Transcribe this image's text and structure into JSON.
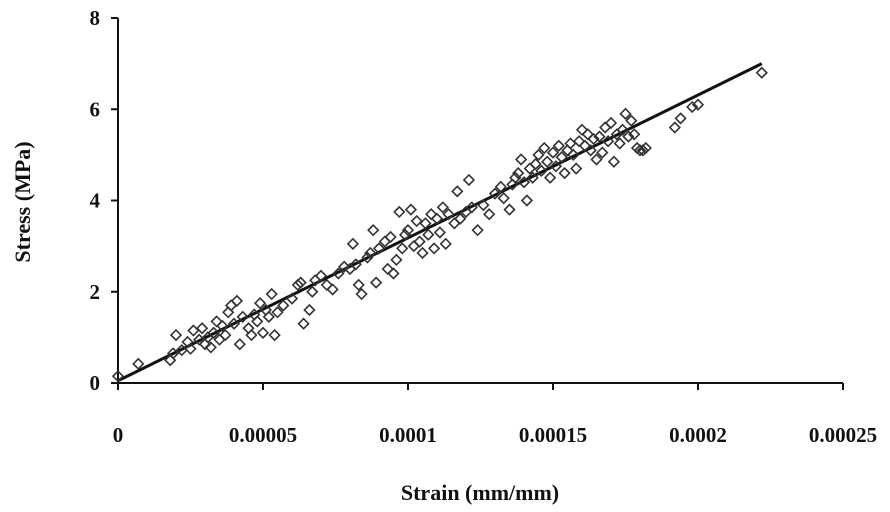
{
  "chart_data": {
    "type": "scatter",
    "title": "",
    "xlabel": "Strain (mm/mm)",
    "ylabel": "Stress (MPa)",
    "xlim": [
      0,
      0.00025
    ],
    "ylim": [
      0,
      8
    ],
    "x_ticks": [
      0,
      5e-05,
      0.0001,
      0.00015,
      0.0002,
      0.00025
    ],
    "x_tick_labels": [
      "0",
      "0.00005",
      "0.0001",
      "0.00015",
      "0.0002",
      "0.00025"
    ],
    "y_ticks": [
      0,
      2,
      4,
      6,
      8
    ],
    "y_tick_labels": [
      "0",
      "2",
      "4",
      "6",
      "8"
    ],
    "grid": false,
    "legend": "none",
    "series": [
      {
        "marker": "diamond-open",
        "points": [
          [
            0,
            0.15
          ],
          [
            7e-06,
            0.42
          ],
          [
            1.8e-05,
            0.5
          ],
          [
            1.9e-05,
            0.65
          ],
          [
            2e-05,
            1.05
          ],
          [
            2.2e-05,
            0.72
          ],
          [
            2.4e-05,
            0.9
          ],
          [
            2.5e-05,
            0.75
          ],
          [
            2.6e-05,
            1.15
          ],
          [
            2.8e-05,
            0.95
          ],
          [
            2.9e-05,
            1.2
          ],
          [
            3e-05,
            0.85
          ],
          [
            3.1e-05,
            1.0
          ],
          [
            3.2e-05,
            0.78
          ],
          [
            3.3e-05,
            1.1
          ],
          [
            3.4e-05,
            1.35
          ],
          [
            3.5e-05,
            0.95
          ],
          [
            3.6e-05,
            1.25
          ],
          [
            3.7e-05,
            1.05
          ],
          [
            3.8e-05,
            1.55
          ],
          [
            3.9e-05,
            1.7
          ],
          [
            4e-05,
            1.3
          ],
          [
            4.1e-05,
            1.8
          ],
          [
            4.2e-05,
            0.85
          ],
          [
            4.3e-05,
            1.45
          ],
          [
            4.5e-05,
            1.2
          ],
          [
            4.6e-05,
            1.05
          ],
          [
            4.7e-05,
            1.5
          ],
          [
            4.8e-05,
            1.35
          ],
          [
            4.9e-05,
            1.75
          ],
          [
            5e-05,
            1.1
          ],
          [
            5.1e-05,
            1.6
          ],
          [
            5.2e-05,
            1.45
          ],
          [
            5.3e-05,
            1.95
          ],
          [
            5.4e-05,
            1.05
          ],
          [
            5.5e-05,
            1.55
          ],
          [
            5.7e-05,
            1.7
          ],
          [
            6e-05,
            1.85
          ],
          [
            6.2e-05,
            2.15
          ],
          [
            6.3e-05,
            2.2
          ],
          [
            6.4e-05,
            1.3
          ],
          [
            6.6e-05,
            1.6
          ],
          [
            6.7e-05,
            2.0
          ],
          [
            6.8e-05,
            2.25
          ],
          [
            7e-05,
            2.35
          ],
          [
            7.2e-05,
            2.15
          ],
          [
            7.4e-05,
            2.05
          ],
          [
            7.6e-05,
            2.4
          ],
          [
            7.8e-05,
            2.55
          ],
          [
            8e-05,
            2.5
          ],
          [
            8.1e-05,
            3.05
          ],
          [
            8.2e-05,
            2.6
          ],
          [
            8.3e-05,
            2.15
          ],
          [
            8.4e-05,
            1.95
          ],
          [
            8.6e-05,
            2.75
          ],
          [
            8.7e-05,
            2.85
          ],
          [
            8.8e-05,
            3.35
          ],
          [
            8.9e-05,
            2.2
          ],
          [
            9e-05,
            2.95
          ],
          [
            9.2e-05,
            3.1
          ],
          [
            9.3e-05,
            2.5
          ],
          [
            9.4e-05,
            3.2
          ],
          [
            9.5e-05,
            2.4
          ],
          [
            9.6e-05,
            2.7
          ],
          [
            9.7e-05,
            3.75
          ],
          [
            9.8e-05,
            2.95
          ],
          [
            9.9e-05,
            3.25
          ],
          [
            0.0001,
            3.35
          ],
          [
            0.000101,
            3.8
          ],
          [
            0.000102,
            3.0
          ],
          [
            0.000103,
            3.55
          ],
          [
            0.000104,
            3.1
          ],
          [
            0.000105,
            2.85
          ],
          [
            0.000106,
            3.5
          ],
          [
            0.000107,
            3.25
          ],
          [
            0.000108,
            3.7
          ],
          [
            0.000109,
            2.95
          ],
          [
            0.00011,
            3.6
          ],
          [
            0.000111,
            3.3
          ],
          [
            0.000112,
            3.85
          ],
          [
            0.000113,
            3.05
          ],
          [
            0.000114,
            3.7
          ],
          [
            0.000116,
            3.5
          ],
          [
            0.000117,
            4.2
          ],
          [
            0.000118,
            3.6
          ],
          [
            0.00012,
            3.75
          ],
          [
            0.000121,
            4.45
          ],
          [
            0.000122,
            3.85
          ],
          [
            0.000124,
            3.35
          ],
          [
            0.000126,
            3.9
          ],
          [
            0.000128,
            3.7
          ],
          [
            0.00013,
            4.15
          ],
          [
            0.000132,
            4.3
          ],
          [
            0.000133,
            4.05
          ],
          [
            0.000135,
            3.8
          ],
          [
            0.000136,
            4.35
          ],
          [
            0.000137,
            4.5
          ],
          [
            0.000138,
            4.6
          ],
          [
            0.000139,
            4.9
          ],
          [
            0.00014,
            4.4
          ],
          [
            0.000141,
            4.0
          ],
          [
            0.000142,
            4.7
          ],
          [
            0.000143,
            4.5
          ],
          [
            0.000144,
            4.8
          ],
          [
            0.000145,
            5.0
          ],
          [
            0.000146,
            4.65
          ],
          [
            0.000147,
            5.15
          ],
          [
            0.000148,
            4.85
          ],
          [
            0.000149,
            4.5
          ],
          [
            0.00015,
            5.05
          ],
          [
            0.000151,
            4.75
          ],
          [
            0.000152,
            5.2
          ],
          [
            0.000153,
            4.95
          ],
          [
            0.000154,
            4.6
          ],
          [
            0.000155,
            5.1
          ],
          [
            0.000156,
            5.25
          ],
          [
            0.000157,
            5.0
          ],
          [
            0.000158,
            4.7
          ],
          [
            0.000159,
            5.3
          ],
          [
            0.00016,
            5.55
          ],
          [
            0.000161,
            5.2
          ],
          [
            0.000162,
            5.45
          ],
          [
            0.000163,
            5.1
          ],
          [
            0.000164,
            5.35
          ],
          [
            0.000165,
            4.9
          ],
          [
            0.000166,
            5.4
          ],
          [
            0.000167,
            5.05
          ],
          [
            0.000168,
            5.6
          ],
          [
            0.000169,
            5.3
          ],
          [
            0.00017,
            5.7
          ],
          [
            0.000171,
            4.85
          ],
          [
            0.000172,
            5.45
          ],
          [
            0.000173,
            5.25
          ],
          [
            0.000174,
            5.55
          ],
          [
            0.000175,
            5.9
          ],
          [
            0.000176,
            5.4
          ],
          [
            0.000177,
            5.75
          ],
          [
            0.000178,
            5.45
          ],
          [
            0.000179,
            5.15
          ],
          [
            0.00018,
            5.1
          ],
          [
            0.000181,
            5.1
          ],
          [
            0.000182,
            5.15
          ],
          [
            0.000192,
            5.6
          ],
          [
            0.000194,
            5.8
          ],
          [
            0.000198,
            6.05
          ],
          [
            0.0002,
            6.1
          ],
          [
            0.000222,
            6.8
          ]
        ]
      },
      {
        "marker": "none",
        "line": "trend",
        "points": [
          [
            0,
            0.05
          ],
          [
            0.000222,
            7.0
          ]
        ]
      }
    ]
  }
}
